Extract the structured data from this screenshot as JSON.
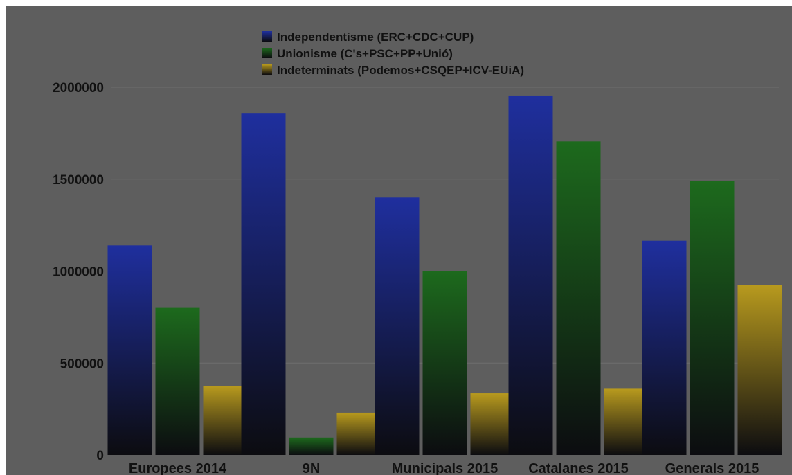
{
  "chart_data": {
    "type": "bar",
    "categories": [
      "Europees 2014",
      "9N",
      "Municipals 2015",
      "Catalanes 2015",
      "Generals 2015"
    ],
    "series": [
      {
        "name": "Independentisme (ERC+CDC+CUP)",
        "values": [
          1140000,
          1860000,
          1400000,
          1955000,
          1165000
        ],
        "color": "#1f2f9e"
      },
      {
        "name": "Unionisme (C's+PSC+PP+Unió)",
        "values": [
          800000,
          95000,
          1000000,
          1705000,
          1490000
        ],
        "color": "#1d6a1d"
      },
      {
        "name": "Indeterminats (Podemos+CSQEP+ICV-EUiA)",
        "values": [
          375000,
          230000,
          335000,
          360000,
          925000
        ],
        "color": "#b89a1e"
      }
    ],
    "yticks": [
      "0",
      "500000",
      "1000000",
      "1500000",
      "2000000"
    ],
    "ylim": [
      0,
      2000000
    ],
    "grid": true,
    "legend_position": "top-center",
    "title": "",
    "xlabel": "",
    "ylabel": ""
  }
}
